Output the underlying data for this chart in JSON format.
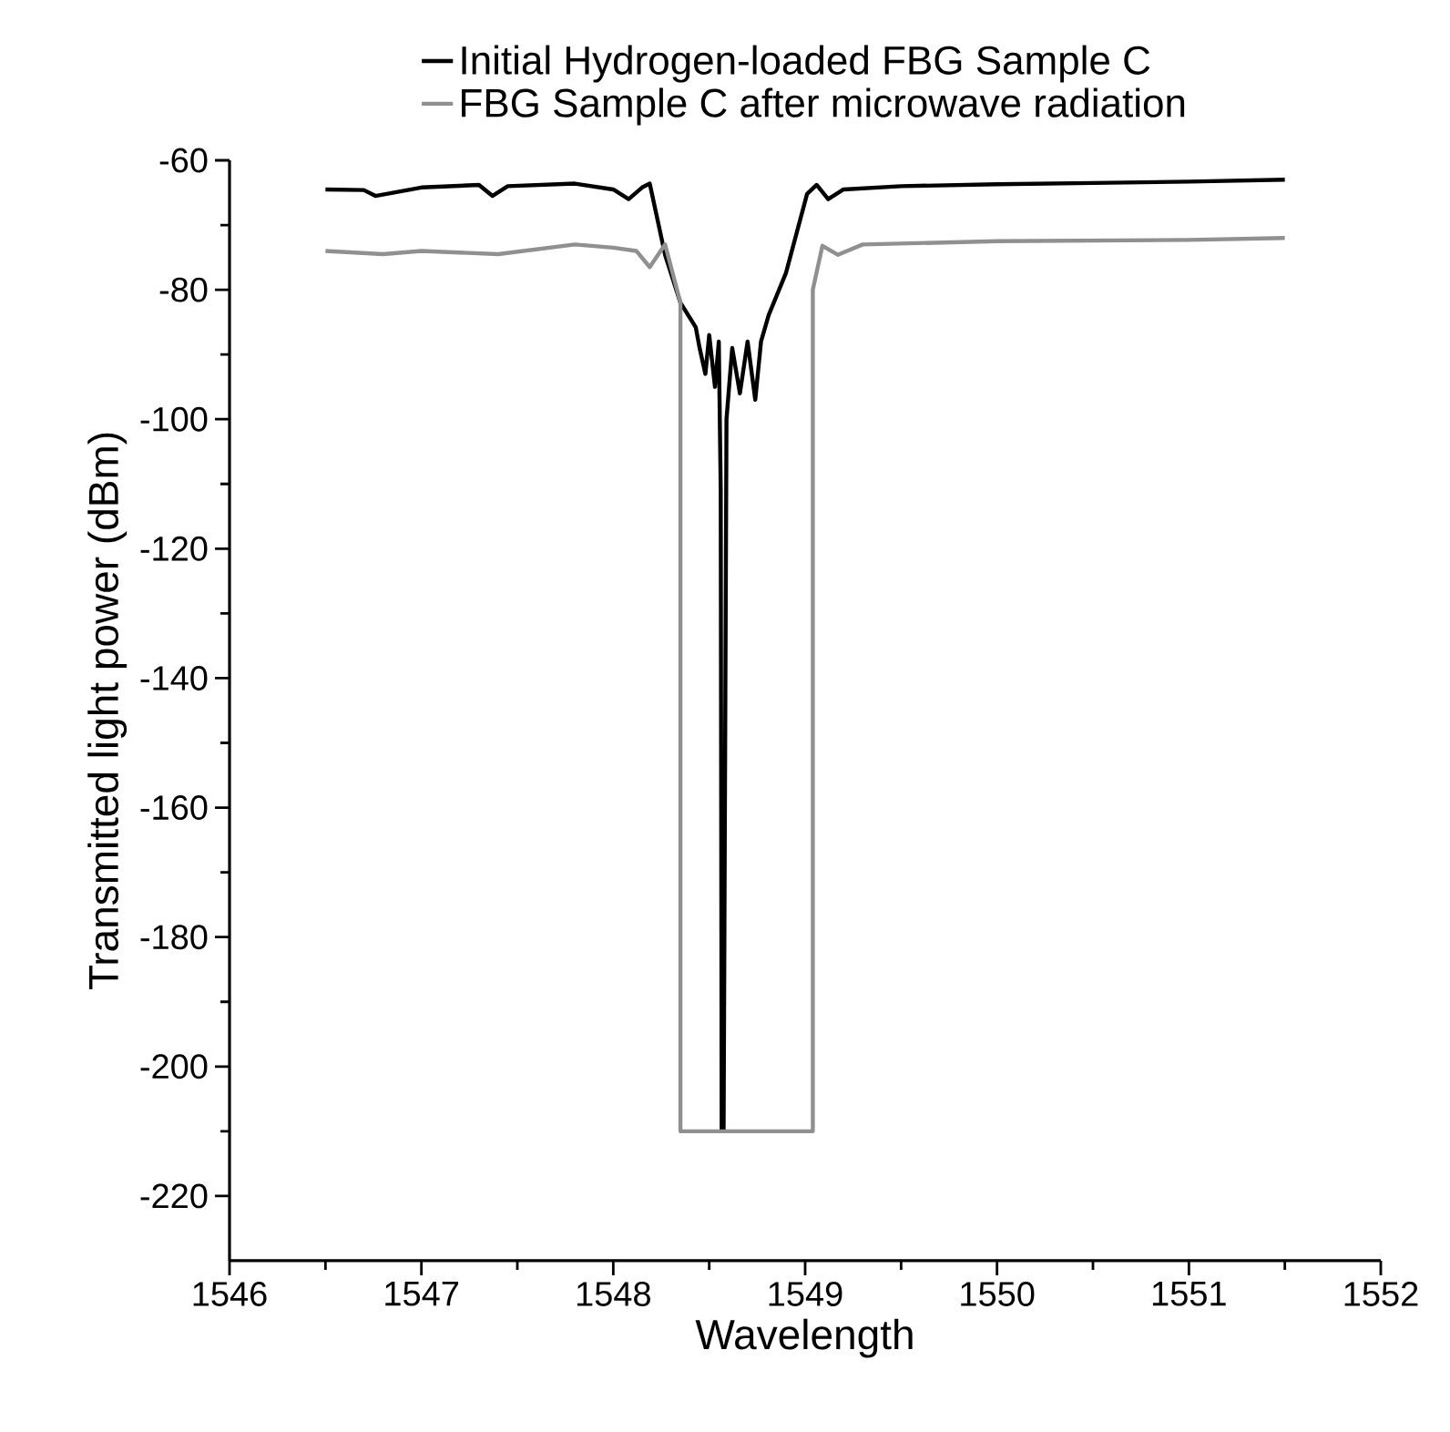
{
  "chart_data": {
    "type": "line",
    "xlabel": "Wavelength",
    "ylabel": "Transmitted light power (dBm)",
    "xlim": [
      1546,
      1552
    ],
    "xticks": [
      1546,
      1547,
      1548,
      1549,
      1550,
      1551,
      1552
    ],
    "ylim": [
      -230,
      -60
    ],
    "yticks": [
      -60,
      -80,
      -100,
      -120,
      -140,
      -160,
      -180,
      -200,
      -220
    ],
    "legend": "top",
    "series": [
      {
        "name": "Initial Hydrogen-loaded FBG Sample C",
        "color": "#000000",
        "x": [
          1546.5,
          1546.7,
          1546.76,
          1547.0,
          1547.3,
          1547.37,
          1547.45,
          1547.8,
          1548.0,
          1548.08,
          1548.15,
          1548.19,
          1548.27,
          1548.35,
          1548.43,
          1548.45,
          1548.48,
          1548.5,
          1548.53,
          1548.55,
          1548.56,
          1548.565,
          1548.575,
          1548.59,
          1548.62,
          1548.66,
          1548.7,
          1548.74,
          1548.77,
          1548.81,
          1548.9,
          1549.01,
          1549.06,
          1549.12,
          1549.2,
          1549.5,
          1550.0,
          1550.5,
          1551.0,
          1551.5
        ],
        "values": [
          -64.5,
          -64.6,
          -65.5,
          -64.2,
          -63.8,
          -65.5,
          -64,
          -63.6,
          -64.5,
          -66,
          -64.2,
          -63.6,
          -74.6,
          -82,
          -85.8,
          -89,
          -93,
          -87,
          -95,
          -88,
          -111,
          -210,
          -210,
          -100,
          -89,
          -96,
          -88,
          -97,
          -88,
          -83.9,
          -77.4,
          -65.2,
          -63.8,
          -66,
          -64.5,
          -64,
          -63.7,
          -63.5,
          -63.3,
          -63
        ]
      },
      {
        "name": "FBG Sample C after microwave radiation",
        "color": "#909090",
        "x": [
          1546.5,
          1546.8,
          1547.0,
          1547.4,
          1547.8,
          1548.0,
          1548.12,
          1548.19,
          1548.27,
          1548.35,
          1548.35,
          1549.04,
          1549.04,
          1549.09,
          1549.17,
          1549.3,
          1550.0,
          1551.0,
          1551.5
        ],
        "values": [
          -74,
          -74.5,
          -74,
          -74.5,
          -73,
          -73.5,
          -74,
          -76.5,
          -73,
          -82,
          -210,
          -210,
          -80,
          -73.2,
          -74.6,
          -73,
          -72.5,
          -72.3,
          -72
        ]
      }
    ]
  }
}
